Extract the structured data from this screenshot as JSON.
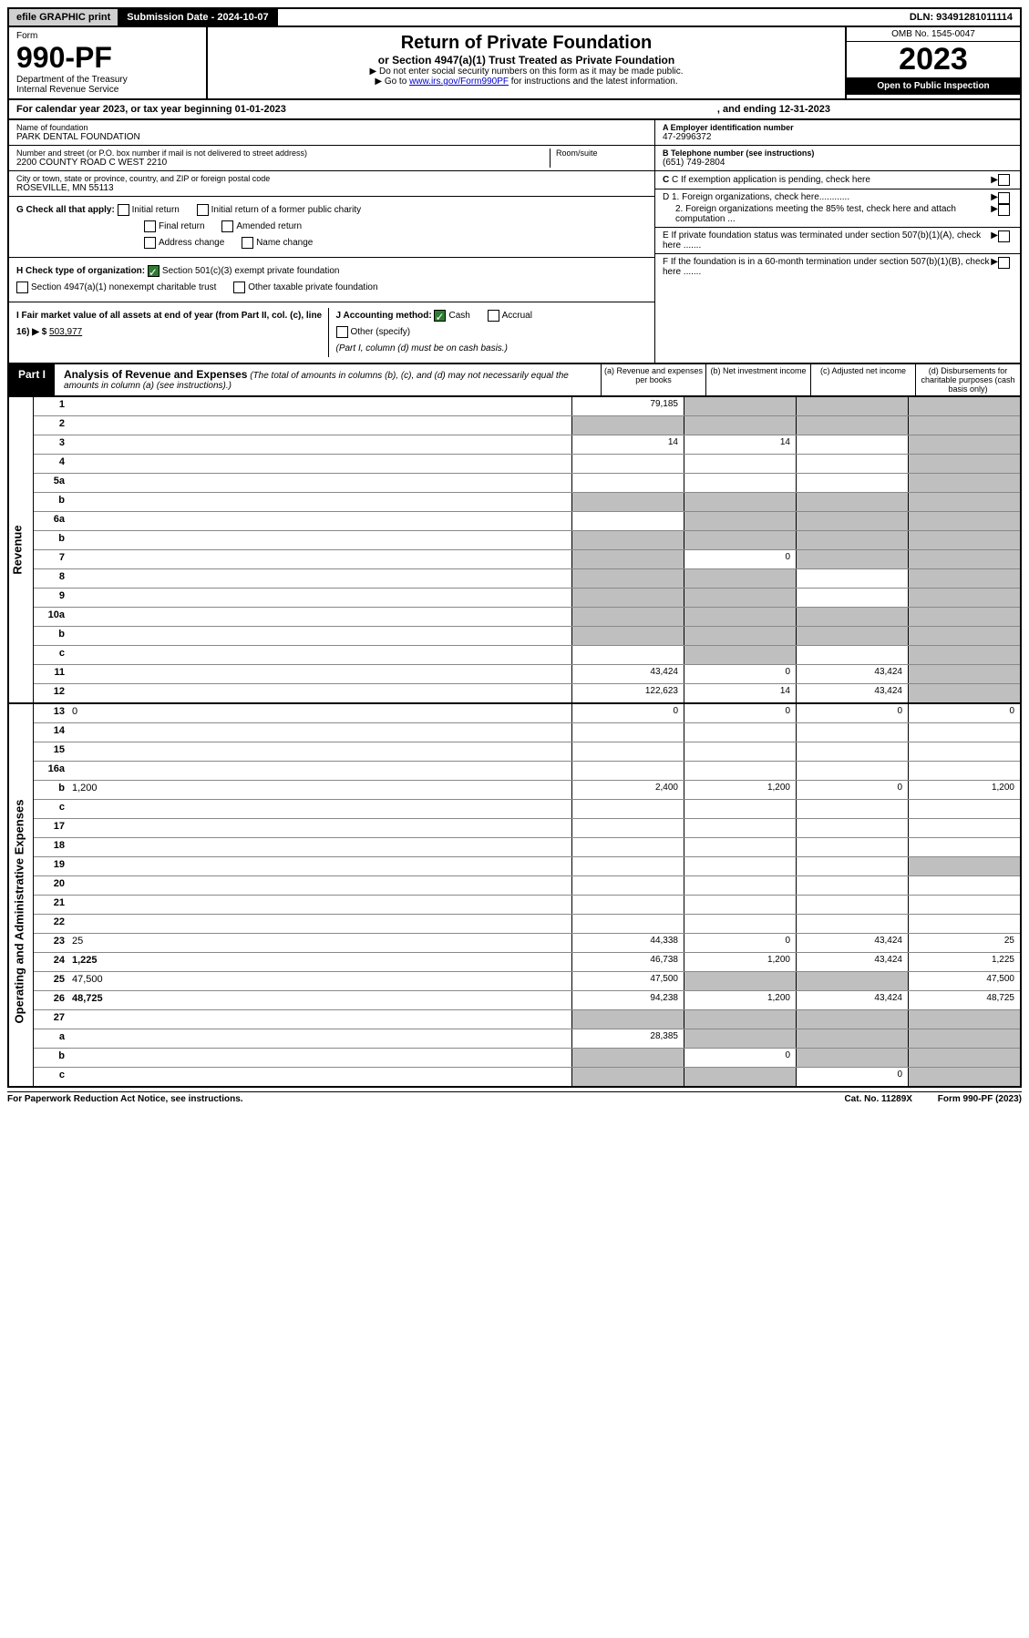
{
  "topbar": {
    "efile": "efile GRAPHIC print",
    "subdate_label": "Submission Date - ",
    "subdate": "2024-10-07",
    "dln_label": "DLN: ",
    "dln": "93491281011114"
  },
  "header": {
    "form_word": "Form",
    "form_no": "990-PF",
    "dept": "Department of the Treasury\nInternal Revenue Service",
    "title": "Return of Private Foundation",
    "subtitle": "or Section 4947(a)(1) Trust Treated as Private Foundation",
    "note1": "▶ Do not enter social security numbers on this form as it may be made public.",
    "note2_pre": "▶ Go to ",
    "note2_link": "www.irs.gov/Form990PF",
    "note2_post": " for instructions and the latest information.",
    "omb": "OMB No. 1545-0047",
    "year": "2023",
    "open": "Open to Public Inspection"
  },
  "cal": {
    "text": "For calendar year 2023, or tax year beginning 01-01-2023",
    "ending": ", and ending 12-31-2023"
  },
  "info": {
    "name_lbl": "Name of foundation",
    "name": "PARK DENTAL FOUNDATION",
    "addr_lbl": "Number and street (or P.O. box number if mail is not delivered to street address)",
    "addr": "2200 COUNTY ROAD C WEST 2210",
    "room_lbl": "Room/suite",
    "city_lbl": "City or town, state or province, country, and ZIP or foreign postal code",
    "city": "ROSEVILLE, MN  55113",
    "ein_lbl": "A Employer identification number",
    "ein": "47-2996372",
    "phone_lbl": "B Telephone number (see instructions)",
    "phone": "(651) 749-2804",
    "c_lbl": "C If exemption application is pending, check here",
    "d1": "D 1. Foreign organizations, check here............",
    "d2": "2. Foreign organizations meeting the 85% test, check here and attach computation ...",
    "e": "E If private foundation status was terminated under section 507(b)(1)(A), check here .......",
    "f": "F If the foundation is in a 60-month termination under section 507(b)(1)(B), check here .......",
    "g_lbl": "G Check all that apply:",
    "g_opts": [
      "Initial return",
      "Initial return of a former public charity",
      "Final return",
      "Amended return",
      "Address change",
      "Name change"
    ],
    "h_lbl": "H Check type of organization:",
    "h1": "Section 501(c)(3) exempt private foundation",
    "h2": "Section 4947(a)(1) nonexempt charitable trust",
    "h3": "Other taxable private foundation",
    "i_lbl": "I Fair market value of all assets at end of year (from Part II, col. (c), line 16) ▶ $",
    "i_val": "503,977",
    "j_lbl": "J Accounting method:",
    "j_cash": "Cash",
    "j_accrual": "Accrual",
    "j_other": "Other (specify)",
    "j_note": "(Part I, column (d) must be on cash basis.)"
  },
  "part1": {
    "tab": "Part I",
    "title": "Analysis of Revenue and Expenses",
    "sub": " (The total of amounts in columns (b), (c), and (d) may not necessarily equal the amounts in column (a) (see instructions).)",
    "col_a": "(a) Revenue and expenses per books",
    "col_b": "(b) Net investment income",
    "col_c": "(c) Adjusted net income",
    "col_d": "(d) Disbursements for charitable purposes (cash basis only)"
  },
  "side": {
    "revenue": "Revenue",
    "expenses": "Operating and Administrative Expenses"
  },
  "rows": [
    {
      "n": "1",
      "d": "",
      "a": "79,185",
      "b": "",
      "c": "",
      "shade": [
        "b",
        "c",
        "d"
      ]
    },
    {
      "n": "2",
      "d": "",
      "a": "",
      "b": "",
      "c": "",
      "shade": [
        "a",
        "b",
        "c",
        "d"
      ]
    },
    {
      "n": "3",
      "d": "",
      "a": "14",
      "b": "14",
      "c": "",
      "shade": [
        "d"
      ]
    },
    {
      "n": "4",
      "d": "",
      "a": "",
      "b": "",
      "c": "",
      "shade": [
        "d"
      ]
    },
    {
      "n": "5a",
      "d": "",
      "a": "",
      "b": "",
      "c": "",
      "shade": [
        "d"
      ]
    },
    {
      "n": "b",
      "d": "",
      "a": "",
      "b": "",
      "c": "",
      "shade": [
        "a",
        "b",
        "c",
        "d"
      ]
    },
    {
      "n": "6a",
      "d": "",
      "a": "",
      "b": "",
      "c": "",
      "shade": [
        "b",
        "c",
        "d"
      ]
    },
    {
      "n": "b",
      "d": "",
      "a": "",
      "b": "",
      "c": "",
      "shade": [
        "a",
        "b",
        "c",
        "d"
      ]
    },
    {
      "n": "7",
      "d": "",
      "a": "",
      "b": "0",
      "c": "",
      "shade": [
        "a",
        "c",
        "d"
      ]
    },
    {
      "n": "8",
      "d": "",
      "a": "",
      "b": "",
      "c": "",
      "shade": [
        "a",
        "b",
        "d"
      ]
    },
    {
      "n": "9",
      "d": "",
      "a": "",
      "b": "",
      "c": "",
      "shade": [
        "a",
        "b",
        "d"
      ]
    },
    {
      "n": "10a",
      "d": "",
      "a": "",
      "b": "",
      "c": "",
      "shade": [
        "a",
        "b",
        "c",
        "d"
      ]
    },
    {
      "n": "b",
      "d": "",
      "a": "",
      "b": "",
      "c": "",
      "shade": [
        "a",
        "b",
        "c",
        "d"
      ]
    },
    {
      "n": "c",
      "d": "",
      "a": "",
      "b": "",
      "c": "",
      "shade": [
        "b",
        "d"
      ]
    },
    {
      "n": "11",
      "d": "",
      "a": "43,424",
      "b": "0",
      "c": "43,424",
      "shade": [
        "d"
      ]
    },
    {
      "n": "12",
      "d": "",
      "a": "122,623",
      "b": "14",
      "c": "43,424",
      "shade": [
        "d"
      ],
      "bold": true
    }
  ],
  "exp_rows": [
    {
      "n": "13",
      "d": "0",
      "a": "0",
      "b": "0",
      "c": "0"
    },
    {
      "n": "14",
      "d": "",
      "a": "",
      "b": "",
      "c": ""
    },
    {
      "n": "15",
      "d": "",
      "a": "",
      "b": "",
      "c": ""
    },
    {
      "n": "16a",
      "d": "",
      "a": "",
      "b": "",
      "c": ""
    },
    {
      "n": "b",
      "d": "1,200",
      "a": "2,400",
      "b": "1,200",
      "c": "0"
    },
    {
      "n": "c",
      "d": "",
      "a": "",
      "b": "",
      "c": ""
    },
    {
      "n": "17",
      "d": "",
      "a": "",
      "b": "",
      "c": ""
    },
    {
      "n": "18",
      "d": "",
      "a": "",
      "b": "",
      "c": ""
    },
    {
      "n": "19",
      "d": "",
      "a": "",
      "b": "",
      "c": "",
      "shade": [
        "d"
      ]
    },
    {
      "n": "20",
      "d": "",
      "a": "",
      "b": "",
      "c": ""
    },
    {
      "n": "21",
      "d": "",
      "a": "",
      "b": "",
      "c": ""
    },
    {
      "n": "22",
      "d": "",
      "a": "",
      "b": "",
      "c": ""
    },
    {
      "n": "23",
      "d": "25",
      "a": "44,338",
      "b": "0",
      "c": "43,424"
    },
    {
      "n": "24",
      "d": "1,225",
      "a": "46,738",
      "b": "1,200",
      "c": "43,424",
      "bold": true
    },
    {
      "n": "25",
      "d": "47,500",
      "a": "47,500",
      "b": "",
      "c": "",
      "shade": [
        "b",
        "c"
      ]
    },
    {
      "n": "26",
      "d": "48,725",
      "a": "94,238",
      "b": "1,200",
      "c": "43,424",
      "bold": true
    },
    {
      "n": "27",
      "d": "",
      "a": "",
      "b": "",
      "c": "",
      "shade": [
        "a",
        "b",
        "c",
        "d"
      ]
    },
    {
      "n": "a",
      "d": "",
      "a": "28,385",
      "b": "",
      "c": "",
      "shade": [
        "b",
        "c",
        "d"
      ],
      "bold": true
    },
    {
      "n": "b",
      "d": "",
      "a": "",
      "b": "0",
      "c": "",
      "shade": [
        "a",
        "c",
        "d"
      ],
      "bold": true
    },
    {
      "n": "c",
      "d": "",
      "a": "",
      "b": "",
      "c": "0",
      "shade": [
        "a",
        "b",
        "d"
      ],
      "bold": true
    }
  ],
  "footer": {
    "left": "For Paperwork Reduction Act Notice, see instructions.",
    "mid": "Cat. No. 11289X",
    "right": "Form 990-PF (2023)"
  }
}
